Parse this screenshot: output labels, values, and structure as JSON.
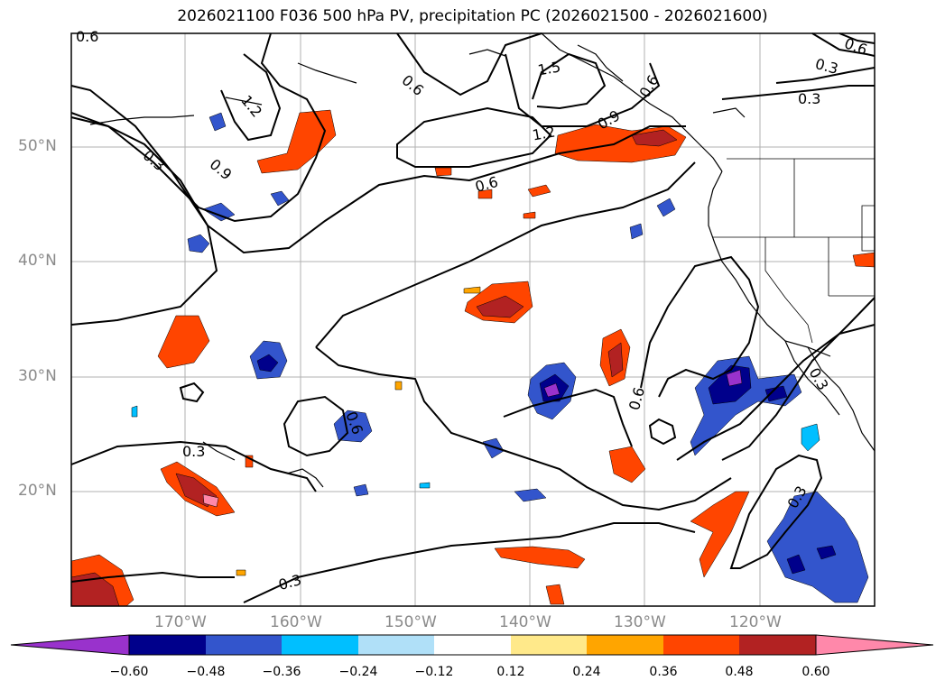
{
  "title": "2026021100 F036 500 hPa PV, precipitation PC (2026021500 - 2026021600)",
  "lon_labels": [
    "170°W",
    "160°W",
    "150°W",
    "140°W",
    "130°W",
    "120°W"
  ],
  "lat_labels": [
    "50°N",
    "40°N",
    "30°N",
    "20°N"
  ],
  "contour_labels": [
    "0.6",
    "1.2",
    "0.3",
    "0.9",
    "0.6",
    "1.5",
    "1.2",
    "0.9",
    "0.6",
    "0.3",
    "0.3",
    "0.6",
    "0.6",
    "0.6",
    "0.3",
    "0.3",
    "0.3",
    "0.3",
    "0.6"
  ],
  "colorbar": {
    "ticks": [
      "−0.60",
      "−0.48",
      "−0.36",
      "−0.24",
      "−0.12",
      "0.12",
      "0.24",
      "0.36",
      "0.48",
      "0.60"
    ],
    "colors": [
      "#9932cc",
      "#00008b",
      "#3355cc",
      "#00bfff",
      "#b0e0f8",
      "#ffffff",
      "#ffe98a",
      "#ffa500",
      "#ff4500",
      "#b22222",
      "#ff88aa"
    ]
  }
}
